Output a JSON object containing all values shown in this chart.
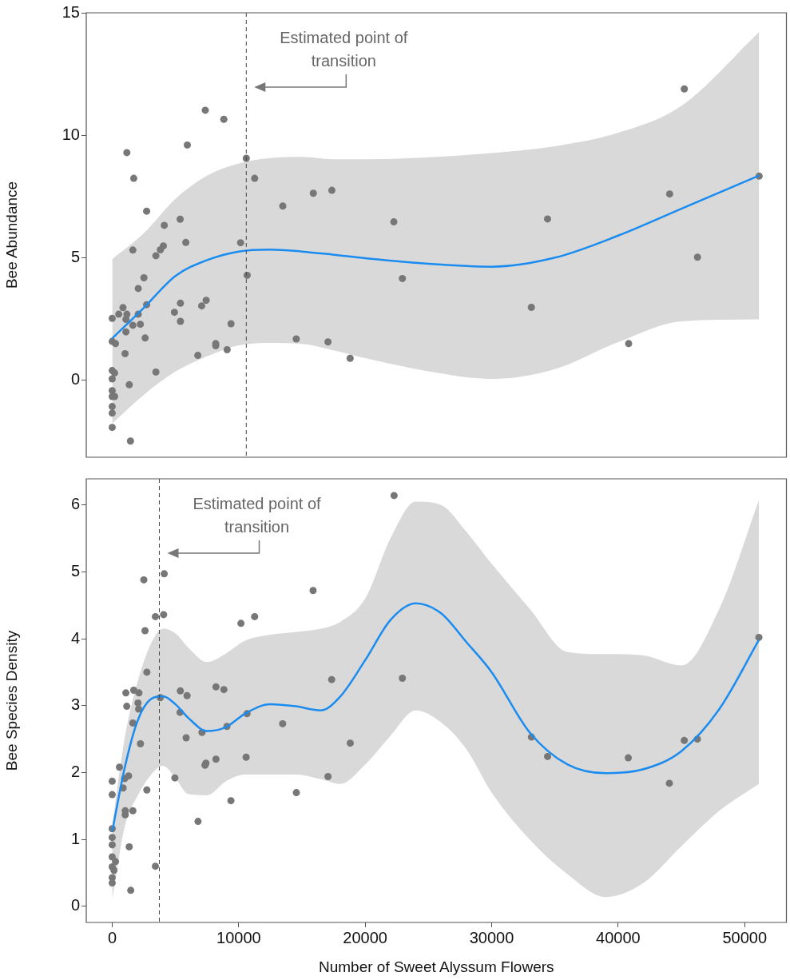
{
  "chart_data": [
    {
      "type": "scatter",
      "ylabel": "Bee Abundance",
      "xlim": [
        -2050,
        53300
      ],
      "ylim": [
        -3.15,
        15
      ],
      "yticks": [
        0,
        5,
        10,
        15
      ],
      "tick_labels": "y",
      "ref_lines": [
        {
          "axis": "x",
          "value": 10600,
          "label": "Estimated point of transition",
          "line_style": "dashed"
        }
      ],
      "series": [
        {
          "type": "scatter",
          "color": "#777777",
          "marker": "circle",
          "x": [
            7358,
            8825,
            5939,
            1159,
            10600,
            1703,
            11262,
            13486,
            15899,
            17366,
            22264,
            2721,
            4117,
            5371,
            5820,
            1633,
            4045,
            3809,
            3454,
            10150,
            10671,
            2508,
            2058,
            2721,
            852,
            520,
            1159,
            0,
            1088,
            2058,
            1633,
            2224,
            1088,
            0,
            260,
            2603,
            1017,
            5394,
            4921,
            5394,
            7074,
            7429,
            9393,
            8186,
            8186,
            9085,
            6767,
            14551,
            17059,
            18810,
            3454,
            0,
            189,
            0,
            1348,
            0,
            189,
            0,
            0,
            0,
            0,
            1443,
            22941,
            34417,
            33139,
            40828,
            44070,
            45229,
            46270,
            51144
          ],
          "values": [
            11.02,
            10.65,
            9.6,
            9.29,
            9.06,
            8.24,
            8.24,
            7.11,
            7.63,
            7.75,
            6.46,
            6.9,
            6.32,
            6.57,
            5.62,
            5.31,
            5.48,
            5.32,
            5.08,
            5.61,
            4.28,
            4.18,
            3.74,
            3.08,
            2.96,
            2.69,
            2.69,
            2.52,
            2.48,
            2.69,
            2.24,
            2.28,
            1.97,
            1.58,
            1.49,
            1.72,
            1.08,
            3.14,
            2.77,
            2.4,
            3.03,
            3.26,
            2.3,
            1.4,
            1.49,
            1.24,
            1.01,
            1.68,
            1.56,
            0.89,
            0.33,
            0.39,
            0.29,
            0.05,
            -0.19,
            -0.43,
            -0.67,
            -0.67,
            -1.08,
            -1.35,
            -1.93,
            -2.49,
            4.15,
            6.58,
            2.97,
            1.49,
            7.6,
            11.89,
            5.02,
            8.33
          ]
        },
        {
          "type": "line",
          "color": "#1a8cf0",
          "marker": "none",
          "x": [
            0,
            2500,
            5000,
            7500,
            10000,
            12500,
            15000,
            17500,
            20000,
            25000,
            30000,
            35000,
            40000,
            45000,
            51144
          ],
          "values": [
            1.7,
            2.95,
            4.25,
            4.9,
            5.25,
            5.33,
            5.25,
            5.12,
            4.98,
            4.75,
            4.63,
            5.0,
            5.9,
            7.0,
            8.35
          ],
          "lower": [
            -1.77,
            -0.6,
            0.35,
            0.97,
            1.42,
            1.52,
            1.48,
            1.22,
            0.9,
            0.36,
            0.05,
            0.45,
            1.55,
            2.4,
            2.48
          ],
          "upper": [
            4.94,
            6.0,
            7.4,
            8.35,
            8.85,
            9.07,
            9.12,
            9.02,
            9.02,
            9.1,
            9.27,
            9.55,
            10.1,
            11.2,
            14.22
          ]
        }
      ]
    },
    {
      "type": "scatter",
      "ylabel": "Bee Species Density",
      "xlabel": "Number of Sweet Alyssum Flowers",
      "xlim": [
        -2050,
        53300
      ],
      "ylim": [
        -0.24,
        6.39
      ],
      "xticks": [
        0,
        10000,
        20000,
        30000,
        40000,
        50000
      ],
      "yticks": [
        0,
        1,
        2,
        3,
        4,
        5,
        6
      ],
      "ref_lines": [
        {
          "axis": "x",
          "value": 3730,
          "label": "Estimated point of transition",
          "line_style": "dashed"
        }
      ],
      "series": [
        {
          "type": "scatter",
          "color": "#777777",
          "marker": "circle",
          "x": [
            22285,
            4113,
            2500,
            15883,
            3414,
            4064,
            10178,
            11261,
            2596,
            2740,
            17351,
            1080,
            1705,
            2115,
            5388,
            5918,
            8204,
            8830,
            3799,
            2042,
            1152,
            2090,
            5364,
            1633,
            10660,
            13476,
            9071,
            7097,
            5846,
            2235,
            18819,
            574,
            8204,
            10587,
            7410,
            7338,
            0,
            983,
            1296,
            863,
            4955,
            17062,
            0,
            2740,
            14559,
            9384,
            1032,
            1633,
            1032,
            6784,
            0,
            0,
            0,
            1344,
            0,
            261,
            0,
            141,
            0,
            0,
            3414,
            1465,
            22939,
            33144,
            34420,
            40799,
            44048,
            45227,
            46263,
            51125
          ],
          "values": [
            6.14,
            4.97,
            4.88,
            4.72,
            4.33,
            4.36,
            4.23,
            4.33,
            4.12,
            3.5,
            3.39,
            3.19,
            3.23,
            3.19,
            3.22,
            3.15,
            3.28,
            3.24,
            3.12,
            3.04,
            2.99,
            2.95,
            2.9,
            2.74,
            2.88,
            2.73,
            2.69,
            2.6,
            2.52,
            2.43,
            2.44,
            2.08,
            2.2,
            2.23,
            2.14,
            2.11,
            1.87,
            1.91,
            1.95,
            1.77,
            1.92,
            1.94,
            1.67,
            1.74,
            1.7,
            1.58,
            1.43,
            1.43,
            1.37,
            1.27,
            1.16,
            1.03,
            0.92,
            0.89,
            0.74,
            0.67,
            0.59,
            0.54,
            0.43,
            0.35,
            0.6,
            0.24,
            3.41,
            2.53,
            2.24,
            2.22,
            1.84,
            2.48,
            2.5,
            4.02
          ]
        },
        {
          "type": "line",
          "color": "#1a8cf0",
          "marker": "none",
          "x": [
            0,
            1000,
            2000,
            3000,
            4000,
            5000,
            6000,
            7500,
            9000,
            10500,
            12500,
            14500,
            16500,
            18000,
            20000,
            22000,
            24000,
            26000,
            28000,
            30000,
            33000,
            36000,
            39000,
            42000,
            45000,
            48000,
            51125
          ],
          "values": [
            1.12,
            2.08,
            2.77,
            3.09,
            3.14,
            3.02,
            2.82,
            2.62,
            2.68,
            2.88,
            3.02,
            2.99,
            2.93,
            3.13,
            3.68,
            4.28,
            4.53,
            4.38,
            3.95,
            3.5,
            2.6,
            2.12,
            1.99,
            2.05,
            2.32,
            2.95,
            3.98
          ],
          "lower": [
            0.09,
            1.2,
            1.65,
            1.95,
            2.1,
            1.92,
            1.68,
            1.66,
            1.87,
            1.97,
            1.97,
            1.97,
            1.9,
            1.83,
            2.12,
            2.55,
            2.93,
            2.75,
            2.35,
            1.7,
            1.0,
            0.48,
            0.14,
            0.35,
            0.9,
            1.43,
            1.83
          ],
          "upper": [
            1.21,
            2.53,
            3.35,
            3.9,
            4.15,
            4.08,
            3.87,
            3.65,
            3.78,
            3.97,
            4.06,
            4.1,
            4.15,
            4.25,
            4.6,
            5.5,
            6.05,
            6.0,
            5.6,
            5.12,
            4.45,
            3.8,
            3.77,
            3.75,
            3.6,
            4.45,
            6.07
          ]
        }
      ]
    }
  ]
}
